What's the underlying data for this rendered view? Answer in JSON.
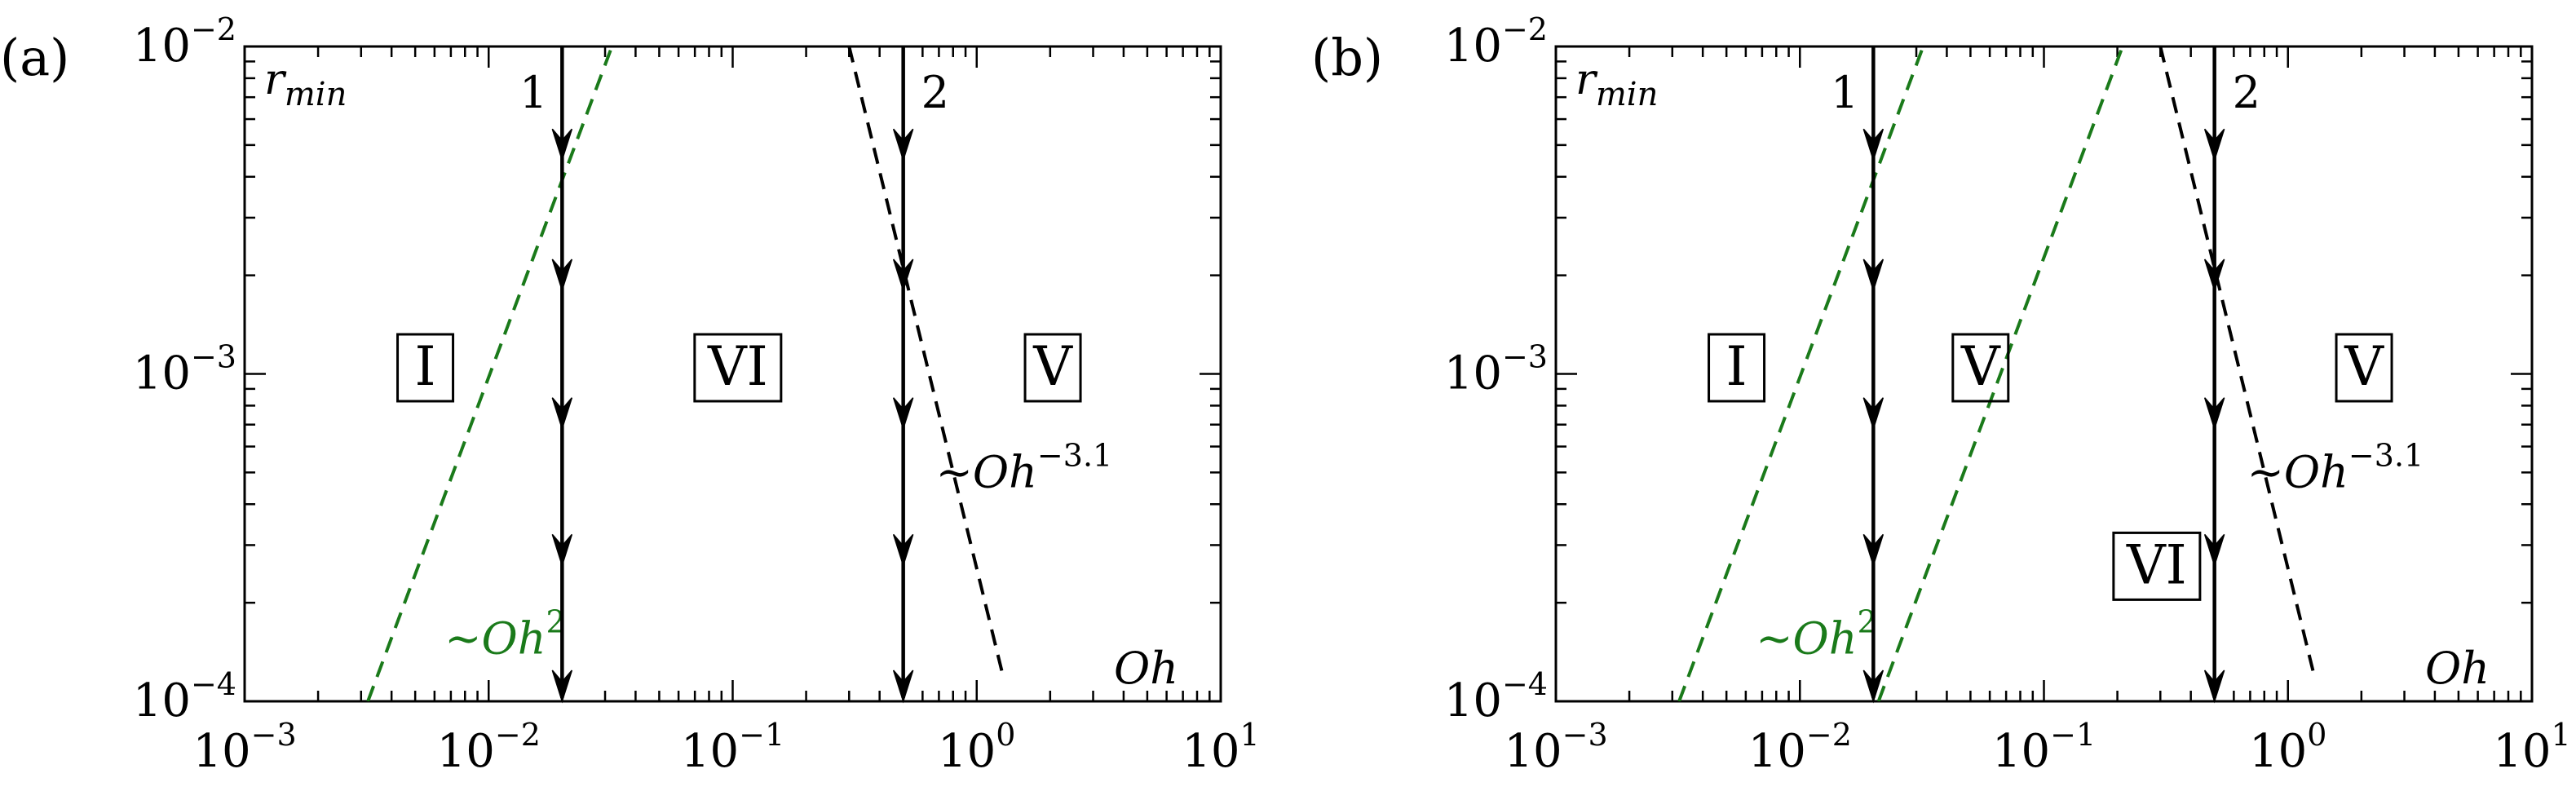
{
  "chart_data": [
    {
      "panel_label": "(a)",
      "type": "line",
      "xscale": "log",
      "yscale": "log",
      "xlim": [
        0.001,
        10
      ],
      "ylim": [
        0.0001,
        0.01
      ],
      "xlabel": "Oh",
      "ylabel": "r",
      "ylabel_sub": "min",
      "x_ticks": [
        {
          "v": 0.001,
          "base": "10",
          "exp": "−3"
        },
        {
          "v": 0.01,
          "base": "10",
          "exp": "−2"
        },
        {
          "v": 0.1,
          "base": "10",
          "exp": "−1"
        },
        {
          "v": 1,
          "base": "10",
          "exp": "0"
        },
        {
          "v": 10,
          "base": "10",
          "exp": "1"
        }
      ],
      "y_ticks": [
        {
          "v": 0.0001,
          "base": "10",
          "exp": "−4"
        },
        {
          "v": 0.001,
          "base": "10",
          "exp": "−3"
        },
        {
          "v": 0.01,
          "base": "10",
          "exp": "−2"
        }
      ],
      "lines": [
        {
          "label_main": "∼Oh",
          "label_sup": "2",
          "color": "#1a7a1a",
          "dashed": true,
          "points": [
            [
              0.0032,
              0.0001
            ],
            [
              0.032,
              0.01
            ]
          ],
          "label_at": [
            0.0066,
            0.00014
          ]
        }
      ],
      "black_lines": [
        {
          "label_main": "∼Oh",
          "label_sup": "−3.1",
          "color": "#000000",
          "dashed": true,
          "points": [
            [
              0.3,
              0.01
            ],
            [
              1.28,
              0.00012
            ]
          ],
          "label_at": [
            0.68,
            0.00045
          ]
        }
      ],
      "arrows": [
        {
          "label": "1",
          "x": 0.02,
          "from": 0.01,
          "to": 0.0001,
          "heads": [
            0.0045,
            0.0018,
            0.00068,
            0.00026,
            0.0001
          ]
        },
        {
          "label": "2",
          "x": 0.5,
          "from": 0.01,
          "to": 0.0001,
          "heads": [
            0.0045,
            0.0018,
            0.00068,
            0.00026,
            0.0001
          ]
        }
      ],
      "regions": [
        {
          "label": "I",
          "x": 0.0055,
          "y": 0.00105
        },
        {
          "label": "VI",
          "x": 0.105,
          "y": 0.00105
        },
        {
          "label": "V",
          "x": 2.05,
          "y": 0.00105
        }
      ]
    },
    {
      "panel_label": "(b)",
      "type": "line",
      "xscale": "log",
      "yscale": "log",
      "xlim": [
        0.001,
        10
      ],
      "ylim": [
        0.0001,
        0.01
      ],
      "xlabel": "Oh",
      "ylabel": "r",
      "ylabel_sub": "min",
      "x_ticks": [
        {
          "v": 0.001,
          "base": "10",
          "exp": "−3"
        },
        {
          "v": 0.01,
          "base": "10",
          "exp": "−2"
        },
        {
          "v": 0.1,
          "base": "10",
          "exp": "−1"
        },
        {
          "v": 1,
          "base": "10",
          "exp": "0"
        },
        {
          "v": 10,
          "base": "10",
          "exp": "1"
        }
      ],
      "y_ticks": [
        {
          "v": 0.0001,
          "base": "10",
          "exp": "−4"
        },
        {
          "v": 0.001,
          "base": "10",
          "exp": "−3"
        },
        {
          "v": 0.01,
          "base": "10",
          "exp": "−2"
        }
      ],
      "lines": [
        {
          "label_main": "∼Oh",
          "label_sup": "2",
          "color": "#1a7a1a",
          "dashed": true,
          "points": [
            [
              0.0032,
              0.0001
            ],
            [
              0.032,
              0.01
            ]
          ],
          "label_at": [
            0.0066,
            0.00014
          ]
        },
        {
          "label_main": "",
          "label_sup": "",
          "color": "#1a7a1a",
          "dashed": true,
          "points": [
            [
              0.021,
              0.0001
            ],
            [
              0.21,
              0.01
            ]
          ],
          "label_at": null
        }
      ],
      "black_lines": [
        {
          "label_main": "∼Oh",
          "label_sup": "−3.1",
          "color": "#000000",
          "dashed": true,
          "points": [
            [
              0.3,
              0.01
            ],
            [
              1.28,
              0.00012
            ]
          ],
          "label_at": [
            0.68,
            0.00045
          ]
        }
      ],
      "arrows": [
        {
          "label": "1",
          "x": 0.02,
          "from": 0.01,
          "to": 0.0001,
          "heads": [
            0.0045,
            0.0018,
            0.00068,
            0.00026,
            0.0001
          ]
        },
        {
          "label": "2",
          "x": 0.5,
          "from": 0.01,
          "to": 0.0001,
          "heads": [
            0.0045,
            0.0018,
            0.00068,
            0.00026,
            0.0001
          ]
        }
      ],
      "regions": [
        {
          "label": "I",
          "x": 0.0055,
          "y": 0.00105
        },
        {
          "label": "V",
          "x": 0.055,
          "y": 0.00105
        },
        {
          "label": "V",
          "x": 2.05,
          "y": 0.00105
        },
        {
          "label": "VI",
          "x": 0.29,
          "y": 0.00026
        }
      ]
    }
  ]
}
